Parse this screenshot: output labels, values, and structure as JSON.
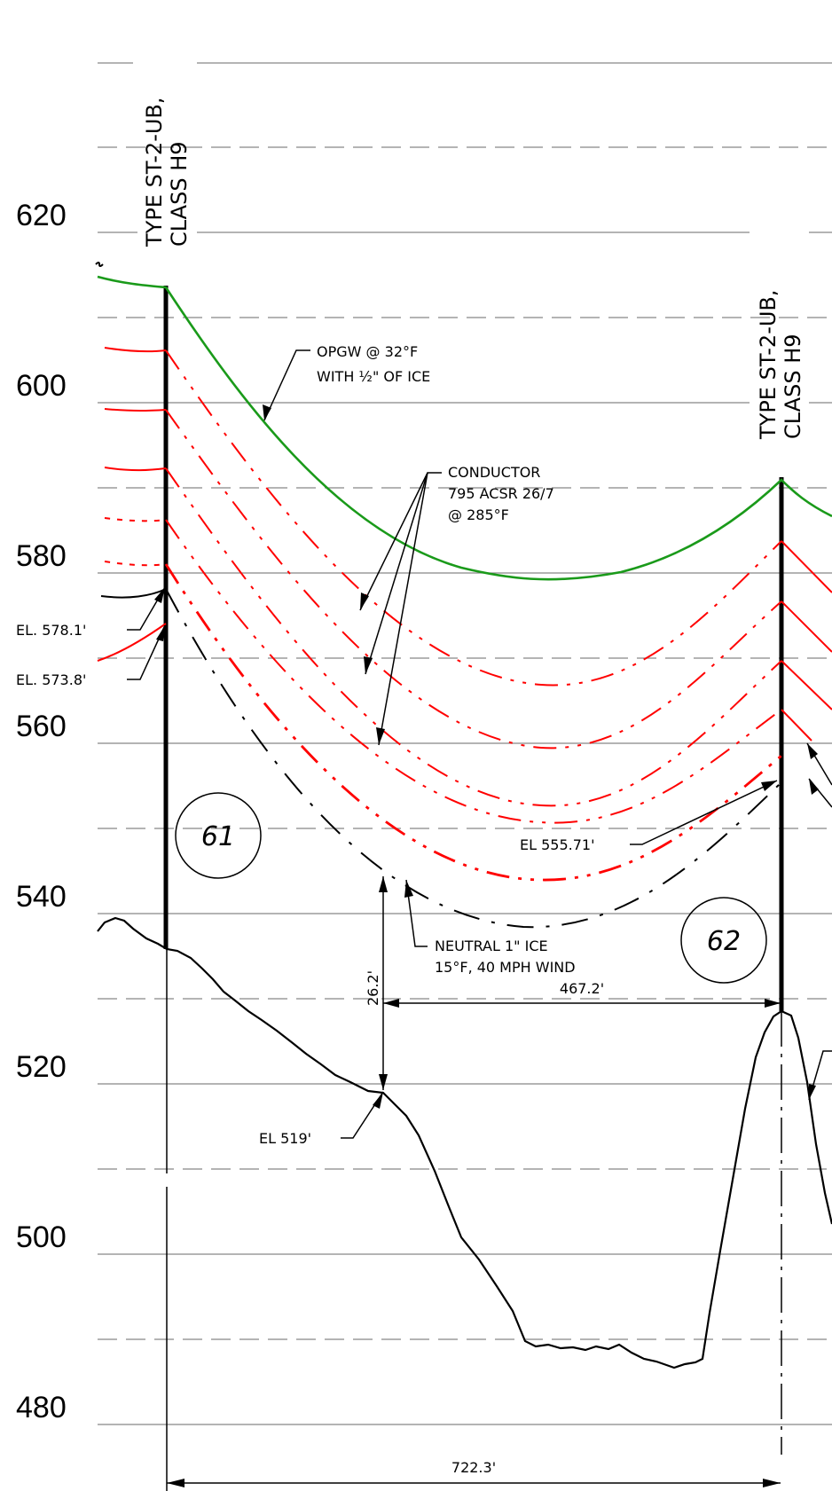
{
  "elevation_labels": [
    "620",
    "600",
    "580",
    "560",
    "540",
    "520",
    "500",
    "480"
  ],
  "structure_left": {
    "line1": "TYPE ST-2-UB,",
    "line2": "CLASS H9",
    "number": "61"
  },
  "structure_right": {
    "line1": "TYPE ST-2-UB,",
    "line2": "CLASS H9",
    "number": "62"
  },
  "opgw_note": {
    "line1": "OPGW @ 32°F",
    "line2": "WITH ½\" OF ICE"
  },
  "conductor_note": {
    "line1": "CONDUCTOR",
    "line2": "795 ACSR 26/7",
    "line3": "@ 285°F"
  },
  "neutral_note": {
    "line1": "NEUTRAL 1\" ICE",
    "line2": "15°F, 40 MPH WIND"
  },
  "elevation_callouts": {
    "left_upper": "EL.  578.1'",
    "left_lower": "EL.  573.8'",
    "right_attach": "EL 555.71'",
    "ground_low": "EL 519'"
  },
  "dimensions": {
    "clearance": "26.2'",
    "clearance_span": "467.2'",
    "span": "722.3'"
  },
  "colors": {
    "opgw": "#1a9a1a",
    "conductor": "#ff0000",
    "ground": "#000000",
    "grid": "#888888"
  }
}
